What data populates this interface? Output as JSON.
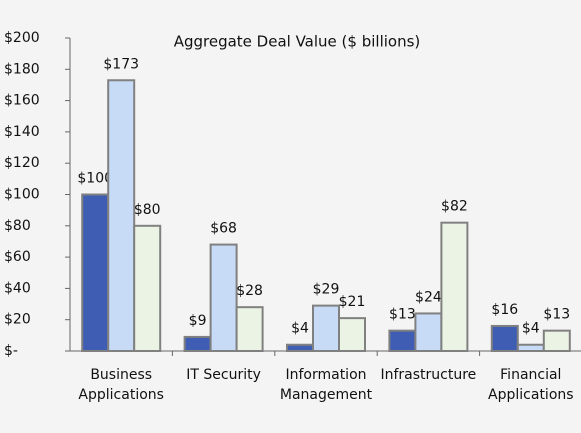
{
  "chart_data": {
    "type": "bar",
    "title": "Aggregate Deal Value ($ billions)",
    "categories": [
      [
        "Business",
        "Applications"
      ],
      [
        "IT Security"
      ],
      [
        "Information",
        "Management"
      ],
      [
        "Infrastructure"
      ],
      [
        "Financial",
        "Applications"
      ]
    ],
    "series": [
      {
        "color": "#3f5db3",
        "values": [
          100,
          9,
          4,
          13,
          16
        ],
        "value_labels": [
          "$100",
          "$9",
          "$4",
          "$13",
          "$16"
        ]
      },
      {
        "color": "#c7daf6",
        "values": [
          173,
          68,
          29,
          24,
          4
        ],
        "value_labels": [
          "$173",
          "$68",
          "$29",
          "$24",
          "$4"
        ]
      },
      {
        "color": "#ebf4e4",
        "values": [
          80,
          28,
          21,
          82,
          13
        ],
        "value_labels": [
          "$80",
          "$28",
          "$21",
          "$82",
          "$13"
        ]
      }
    ],
    "ylim": [
      0,
      200
    ],
    "yticks": [
      {
        "value": 0,
        "label": "$-"
      },
      {
        "value": 20,
        "label": "$20"
      },
      {
        "value": 40,
        "label": "$40"
      },
      {
        "value": 60,
        "label": "$60"
      },
      {
        "value": 80,
        "label": "$80"
      },
      {
        "value": 100,
        "label": "$100"
      },
      {
        "value": 120,
        "label": "$120"
      },
      {
        "value": 140,
        "label": "$140"
      },
      {
        "value": 160,
        "label": "$160"
      },
      {
        "value": 180,
        "label": "$180"
      },
      {
        "value": 200,
        "label": "$200"
      }
    ],
    "grid": false
  }
}
